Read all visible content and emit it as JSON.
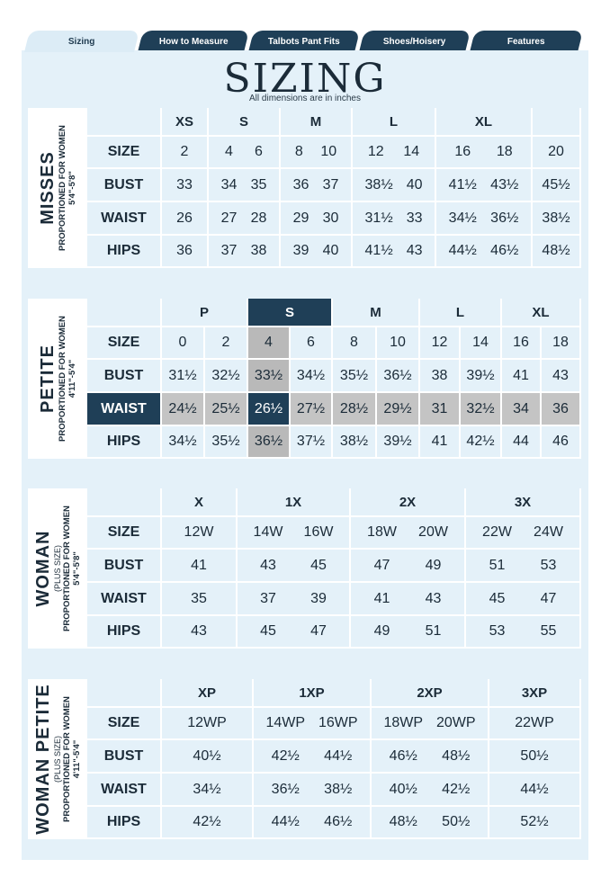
{
  "tabs": [
    {
      "label": "Sizing",
      "active": true
    },
    {
      "label": "How to Measure",
      "active": false
    },
    {
      "label": "Talbots Pant Fits",
      "active": false
    },
    {
      "label": "Shoes/Hoisery",
      "active": false
    },
    {
      "label": "Features",
      "active": false
    }
  ],
  "page_title": "SIZING",
  "subtitle": "All dimensions are in inches",
  "row_labels": {
    "size": "SIZE",
    "bust": "BUST",
    "waist": "WAIST",
    "hips": "HIPS"
  },
  "misses": {
    "title": "MISSES",
    "proportion": "PROPORTIONED FOR WOMEN",
    "range": "5'4\"-5'8\"",
    "groups": [
      "XS",
      "S",
      "M",
      "L",
      "XL",
      ""
    ],
    "size": [
      [
        "2"
      ],
      [
        "4",
        "6"
      ],
      [
        "8",
        "10"
      ],
      [
        "12",
        "14"
      ],
      [
        "16",
        "18"
      ],
      [
        "20"
      ]
    ],
    "bust": [
      [
        "33"
      ],
      [
        "34",
        "35"
      ],
      [
        "36",
        "37"
      ],
      [
        "38½",
        "40"
      ],
      [
        "41½",
        "43½"
      ],
      [
        "45½"
      ]
    ],
    "waist": [
      [
        "26"
      ],
      [
        "27",
        "28"
      ],
      [
        "29",
        "30"
      ],
      [
        "31½",
        "33"
      ],
      [
        "34½",
        "36½"
      ],
      [
        "38½"
      ]
    ],
    "hips": [
      [
        "36"
      ],
      [
        "37",
        "38"
      ],
      [
        "39",
        "40"
      ],
      [
        "41½",
        "43"
      ],
      [
        "44½",
        "46½"
      ],
      [
        "48½"
      ]
    ]
  },
  "petite": {
    "title": "PETITE",
    "proportion": "PROPORTIONED FOR WOMEN",
    "range": "4'11\"-5'4\"",
    "groups": [
      "P",
      "S",
      "M",
      "L",
      "XL"
    ],
    "size": [
      "0",
      "2",
      "4",
      "6",
      "8",
      "10",
      "12",
      "14",
      "16",
      "18"
    ],
    "bust": [
      "31½",
      "32½",
      "33½",
      "34½",
      "35½",
      "36½",
      "38",
      "39½",
      "41",
      "43"
    ],
    "waist": [
      "24½",
      "25½",
      "26½",
      "27½",
      "28½",
      "29½",
      "31",
      "32½",
      "34",
      "36"
    ],
    "hips": [
      "34½",
      "35½",
      "36½",
      "37½",
      "38½",
      "39½",
      "41",
      "42½",
      "44",
      "46"
    ]
  },
  "woman": {
    "title": "WOMAN",
    "plus": "(PLUS SIZE)",
    "proportion": "PROPORTIONED FOR WOMEN",
    "range": "5'4\"-5'8\"",
    "groups": [
      "X",
      "1X",
      "2X",
      "3X"
    ],
    "size": [
      [
        "12W"
      ],
      [
        "14W",
        "16W"
      ],
      [
        "18W",
        "20W"
      ],
      [
        "22W",
        "24W"
      ]
    ],
    "bust": [
      [
        "41"
      ],
      [
        "43",
        "45"
      ],
      [
        "47",
        "49"
      ],
      [
        "51",
        "53"
      ]
    ],
    "waist": [
      [
        "35"
      ],
      [
        "37",
        "39"
      ],
      [
        "41",
        "43"
      ],
      [
        "45",
        "47"
      ]
    ],
    "hips": [
      [
        "43"
      ],
      [
        "45",
        "47"
      ],
      [
        "49",
        "51"
      ],
      [
        "53",
        "55"
      ]
    ]
  },
  "woman_petite": {
    "title": "WOMAN PETITE",
    "plus": "(PLUS SIZE)",
    "proportion": "PROPORTIONED FOR WOMEN",
    "range": "4'11\"-5'4\"",
    "groups": [
      "XP",
      "1XP",
      "2XP",
      "3XP"
    ],
    "size": [
      [
        "12WP"
      ],
      [
        "14WP",
        "16WP"
      ],
      [
        "18WP",
        "20WP"
      ],
      [
        "22WP"
      ]
    ],
    "bust": [
      [
        "40½"
      ],
      [
        "42½",
        "44½"
      ],
      [
        "46½",
        "48½"
      ],
      [
        "50½"
      ]
    ],
    "waist": [
      [
        "34½"
      ],
      [
        "36½",
        "38½"
      ],
      [
        "40½",
        "42½"
      ],
      [
        "44½"
      ]
    ],
    "hips": [
      [
        "42½"
      ],
      [
        "44½",
        "46½"
      ],
      [
        "48½",
        "50½"
      ],
      [
        "52½"
      ]
    ]
  }
}
